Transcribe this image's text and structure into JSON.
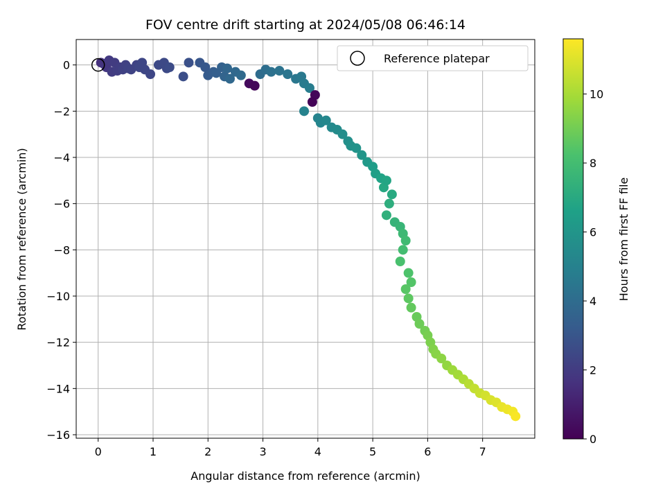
{
  "chart_data": {
    "type": "scatter",
    "title": "FOV centre drift starting at 2024/05/08 06:46:14",
    "xlabel": "Angular distance from reference (arcmin)",
    "ylabel": "Rotation from reference (arcmin)",
    "xlim": [
      -0.4,
      7.95
    ],
    "ylim": [
      -16.15,
      1.1
    ],
    "xticks": [
      "0",
      "1",
      "2",
      "3",
      "4",
      "5",
      "6",
      "7"
    ],
    "yticks": [
      "0",
      "−2",
      "−4",
      "−6",
      "−8",
      "−10",
      "−12",
      "−14",
      "−16"
    ],
    "grid": true,
    "legend": {
      "position": "top-right",
      "entries": [
        "Reference platepar"
      ]
    },
    "colorbar": {
      "label": "Hours from first FF file",
      "colormap": "viridis",
      "range": [
        0,
        11.6
      ],
      "ticks": [
        "0",
        "2",
        "4",
        "6",
        "8",
        "10"
      ]
    },
    "reference_point": {
      "x": 0,
      "y": 0
    },
    "series": [
      {
        "color_by": "hours",
        "x": [
          0.05,
          0.1,
          0.15,
          0.2,
          0.25,
          0.3,
          0.35,
          0.4,
          0.45,
          0.5,
          0.55,
          0.6,
          0.7,
          0.75,
          0.8,
          0.85,
          0.95,
          1.1,
          1.2,
          1.25,
          1.3,
          1.55,
          1.65,
          1.85,
          1.95,
          2.0,
          2.1,
          2.15,
          2.25,
          2.3,
          2.35,
          2.4,
          2.5,
          2.6,
          2.75,
          2.85,
          2.95,
          3.05,
          3.15,
          3.3,
          3.45,
          3.6,
          3.7,
          3.75,
          3.85,
          3.95,
          3.9,
          3.75,
          4.0,
          4.05,
          4.15,
          4.25,
          4.35,
          4.45,
          4.55,
          4.6,
          4.7,
          4.8,
          4.9,
          5.0,
          5.05,
          5.15,
          5.2,
          5.25,
          5.35,
          5.3,
          5.25,
          5.4,
          5.5,
          5.55,
          5.6,
          5.55,
          5.5,
          5.65,
          5.7,
          5.6,
          5.65,
          5.7,
          5.8,
          5.85,
          5.95,
          6.0,
          6.05,
          6.1,
          6.15,
          6.25,
          6.35,
          6.45,
          6.55,
          6.65,
          6.75,
          6.85,
          6.95,
          7.05,
          7.15,
          7.25,
          7.35,
          7.45,
          7.55,
          7.6
        ],
        "y": [
          0.1,
          0.05,
          -0.1,
          0.2,
          -0.3,
          0.1,
          -0.25,
          -0.1,
          -0.2,
          0.0,
          -0.15,
          -0.2,
          0.0,
          -0.1,
          0.1,
          -0.2,
          -0.4,
          0.0,
          0.1,
          -0.15,
          -0.1,
          -0.5,
          0.1,
          0.1,
          -0.1,
          -0.45,
          -0.3,
          -0.35,
          -0.1,
          -0.5,
          -0.15,
          -0.6,
          -0.3,
          -0.45,
          -0.8,
          -0.9,
          -0.4,
          -0.2,
          -0.3,
          -0.25,
          -0.4,
          -0.6,
          -0.5,
          -0.8,
          -1.0,
          -1.3,
          -1.6,
          -2.0,
          -2.3,
          -2.5,
          -2.4,
          -2.7,
          -2.8,
          -3.0,
          -3.3,
          -3.5,
          -3.6,
          -3.9,
          -4.2,
          -4.4,
          -4.7,
          -4.9,
          -5.3,
          -5.0,
          -5.6,
          -6.0,
          -6.5,
          -6.8,
          -7.0,
          -7.3,
          -7.6,
          -8.0,
          -8.5,
          -9.0,
          -9.4,
          -9.7,
          -10.1,
          -10.5,
          -10.9,
          -11.2,
          -11.5,
          -11.7,
          -12.0,
          -12.3,
          -12.5,
          -12.7,
          -13.0,
          -13.2,
          -13.4,
          -13.6,
          -13.8,
          -14.0,
          -14.2,
          -14.3,
          -14.5,
          -14.6,
          -14.8,
          -14.9,
          -15.0,
          -15.2
        ],
        "hours": [
          1.6,
          1.7,
          1.8,
          1.9,
          2.0,
          2.0,
          2.1,
          2.1,
          2.2,
          2.2,
          2.3,
          2.3,
          2.3,
          2.4,
          2.4,
          2.4,
          2.4,
          2.5,
          2.5,
          2.5,
          2.6,
          2.7,
          2.8,
          3.0,
          3.1,
          3.2,
          3.3,
          3.4,
          3.5,
          3.6,
          3.7,
          3.8,
          3.8,
          3.9,
          0.3,
          0.2,
          4.0,
          4.1,
          4.2,
          4.3,
          4.4,
          4.5,
          4.6,
          4.7,
          4.8,
          0.2,
          0.1,
          5.0,
          5.1,
          5.2,
          5.3,
          5.4,
          5.5,
          5.6,
          5.7,
          5.8,
          5.9,
          6.0,
          6.2,
          6.4,
          6.5,
          6.7,
          6.9,
          6.8,
          7.0,
          7.2,
          7.3,
          7.5,
          7.6,
          7.8,
          7.9,
          8.0,
          8.2,
          8.3,
          8.4,
          8.5,
          8.6,
          8.7,
          8.8,
          8.9,
          9.0,
          9.1,
          9.2,
          9.3,
          9.4,
          9.5,
          9.6,
          9.8,
          9.9,
          10.1,
          10.3,
          10.5,
          10.6,
          10.8,
          10.9,
          11.0,
          11.2,
          11.3,
          11.4,
          11.5
        ]
      }
    ]
  }
}
